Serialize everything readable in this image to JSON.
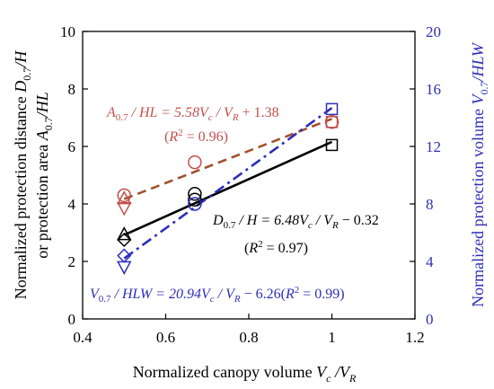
{
  "chart_data": {
    "type": "scatter",
    "xlabel": "Normalized canopy volume",
    "xlabel_math": "V_c /V_R",
    "ylabel_left_line1": "Normalized protection distance",
    "ylabel_left_line2": "or protection area",
    "ylabel_right": "Normalized protection volume",
    "xlim": [
      0.4,
      1.2
    ],
    "ylim_left": [
      0,
      10
    ],
    "ylim_right": [
      0,
      20
    ],
    "xticks": [
      "0.4",
      "0.6",
      "0.8",
      "1",
      "1.2"
    ],
    "yticks_left": [
      "0",
      "2",
      "4",
      "6",
      "8",
      "10"
    ],
    "yticks_right": [
      "0",
      "4",
      "8",
      "12",
      "16",
      "20"
    ],
    "grid": false,
    "series": [
      {
        "axis": "left",
        "marker": "circle",
        "color": "#c0504d",
        "x": [
          0.5,
          0.67,
          1.0
        ],
        "y": [
          4.3,
          5.45,
          6.85
        ],
        "fit": {
          "slope": 5.58,
          "intercept": 1.38,
          "x_range": [
            0.5,
            1.0
          ],
          "style": "dashed",
          "color": "#a0522d"
        }
      },
      {
        "axis": "left",
        "marker": "square",
        "color": "#c0504d",
        "x": [
          1.0
        ],
        "y": [
          6.85
        ]
      },
      {
        "axis": "left",
        "marker": "triangle-up",
        "color": "#c0504d",
        "x": [
          0.5
        ],
        "y": [
          4.2
        ]
      },
      {
        "axis": "left",
        "marker": "triangle-down",
        "color": "#c0504d",
        "x": [
          0.5
        ],
        "y": [
          3.85
        ]
      },
      {
        "axis": "left",
        "marker": "circle",
        "color": "#000000",
        "x": [
          0.67
        ],
        "y": [
          4.35
        ]
      },
      {
        "axis": "left",
        "marker": "square",
        "color": "#000000",
        "x": [
          1.0
        ],
        "y": [
          6.05
        ],
        "fit": {
          "slope": 6.48,
          "intercept": -0.32,
          "x_range": [
            0.5,
            1.0
          ],
          "style": "solid",
          "color": "#000000"
        }
      },
      {
        "axis": "left",
        "marker": "triangle-up",
        "color": "#000000",
        "x": [
          0.5
        ],
        "y": [
          2.95
        ]
      },
      {
        "axis": "left",
        "marker": "diamond",
        "color": "#000000",
        "x": [
          0.5
        ],
        "y": [
          2.75
        ]
      },
      {
        "axis": "left",
        "marker": "circle",
        "color": "#000000",
        "x": [
          0.67
        ],
        "y": [
          4.15
        ]
      },
      {
        "axis": "right",
        "marker": "square",
        "color": "#2e2eb8",
        "x": [
          1.0
        ],
        "y": [
          14.6
        ],
        "fit": {
          "slope": 20.94,
          "intercept": -6.26,
          "x_range": [
            0.5,
            1.0
          ],
          "style": "dashdot",
          "color": "#2e2eb8"
        }
      },
      {
        "axis": "right",
        "marker": "diamond",
        "color": "#2e2eb8",
        "x": [
          0.5
        ],
        "y": [
          4.4
        ]
      },
      {
        "axis": "right",
        "marker": "triangle-down",
        "color": "#2e2eb8",
        "x": [
          0.5
        ],
        "y": [
          3.6
        ]
      },
      {
        "axis": "right",
        "marker": "circle",
        "color": "#2e2eb8",
        "x": [
          0.67
        ],
        "y": [
          8.0
        ]
      }
    ],
    "annotations": [
      {
        "id": "red_eq",
        "text": "A0.7 / HL = 5.58Vc / VR + 1.38",
        "color": "#c0504d",
        "near_x": 0.55,
        "near_y_left": 7.5
      },
      {
        "id": "red_r2",
        "text": "(R2 = 0.96)",
        "color": "#c0504d",
        "near_x": 0.6,
        "near_y_left": 6.6
      },
      {
        "id": "black_eq",
        "text": "D0.7 / H = 6.48Vc / VR − 0.32",
        "color": "#000000",
        "near_x": 0.76,
        "near_y_left": 3.2
      },
      {
        "id": "black_r2",
        "text": "(R2 = 0.97)",
        "color": "#000000",
        "near_x": 0.82,
        "near_y_left": 2.4
      },
      {
        "id": "blue_eq",
        "text": "V0.7 / HLW = 20.94Vc / VR − 6.26(R2 = 0.99)",
        "color": "#2e2eb8",
        "near_x": 0.42,
        "near_y_left": 0.8
      }
    ]
  }
}
